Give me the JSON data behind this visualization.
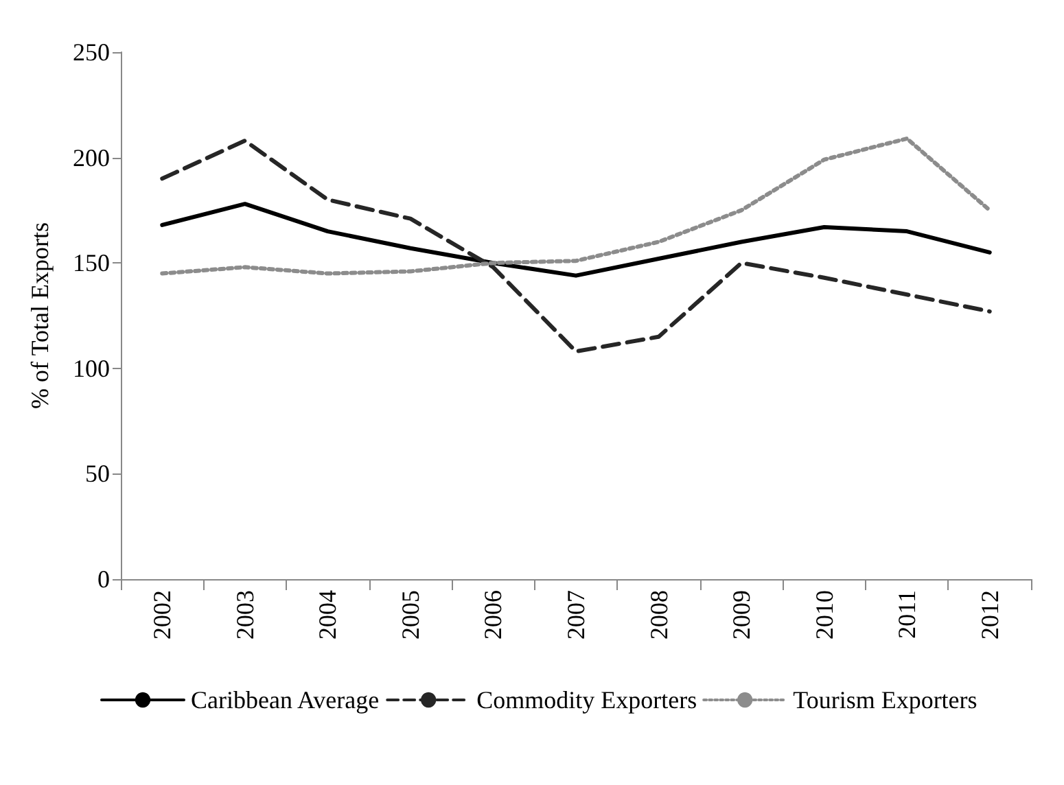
{
  "chart_data": {
    "type": "line",
    "ylabel": "% of Total Exports",
    "categories": [
      "2002",
      "2003",
      "2004",
      "2005",
      "2006",
      "2007",
      "2008",
      "2009",
      "2010",
      "2011",
      "2012"
    ],
    "series": [
      {
        "name": "Caribbean Average",
        "color": "#000000",
        "line_style": "solid",
        "values": [
          168,
          178,
          165,
          157,
          150,
          144,
          152,
          160,
          167,
          165,
          155
        ]
      },
      {
        "name": "Commodity Exporters",
        "color": "#262626",
        "line_style": "dashed",
        "values": [
          190,
          208,
          180,
          171,
          148,
          108,
          115,
          150,
          143,
          135,
          127
        ]
      },
      {
        "name": "Tourism Exporters",
        "color": "#8c8c8c",
        "line_style": "dotted",
        "values": [
          145,
          148,
          145,
          146,
          150,
          151,
          160,
          175,
          199,
          209,
          175
        ]
      }
    ],
    "ylim": [
      0,
      250
    ],
    "yticks": [
      0,
      50,
      100,
      150,
      200,
      250
    ],
    "grid": false,
    "legend": "bottom",
    "marker": "none"
  }
}
